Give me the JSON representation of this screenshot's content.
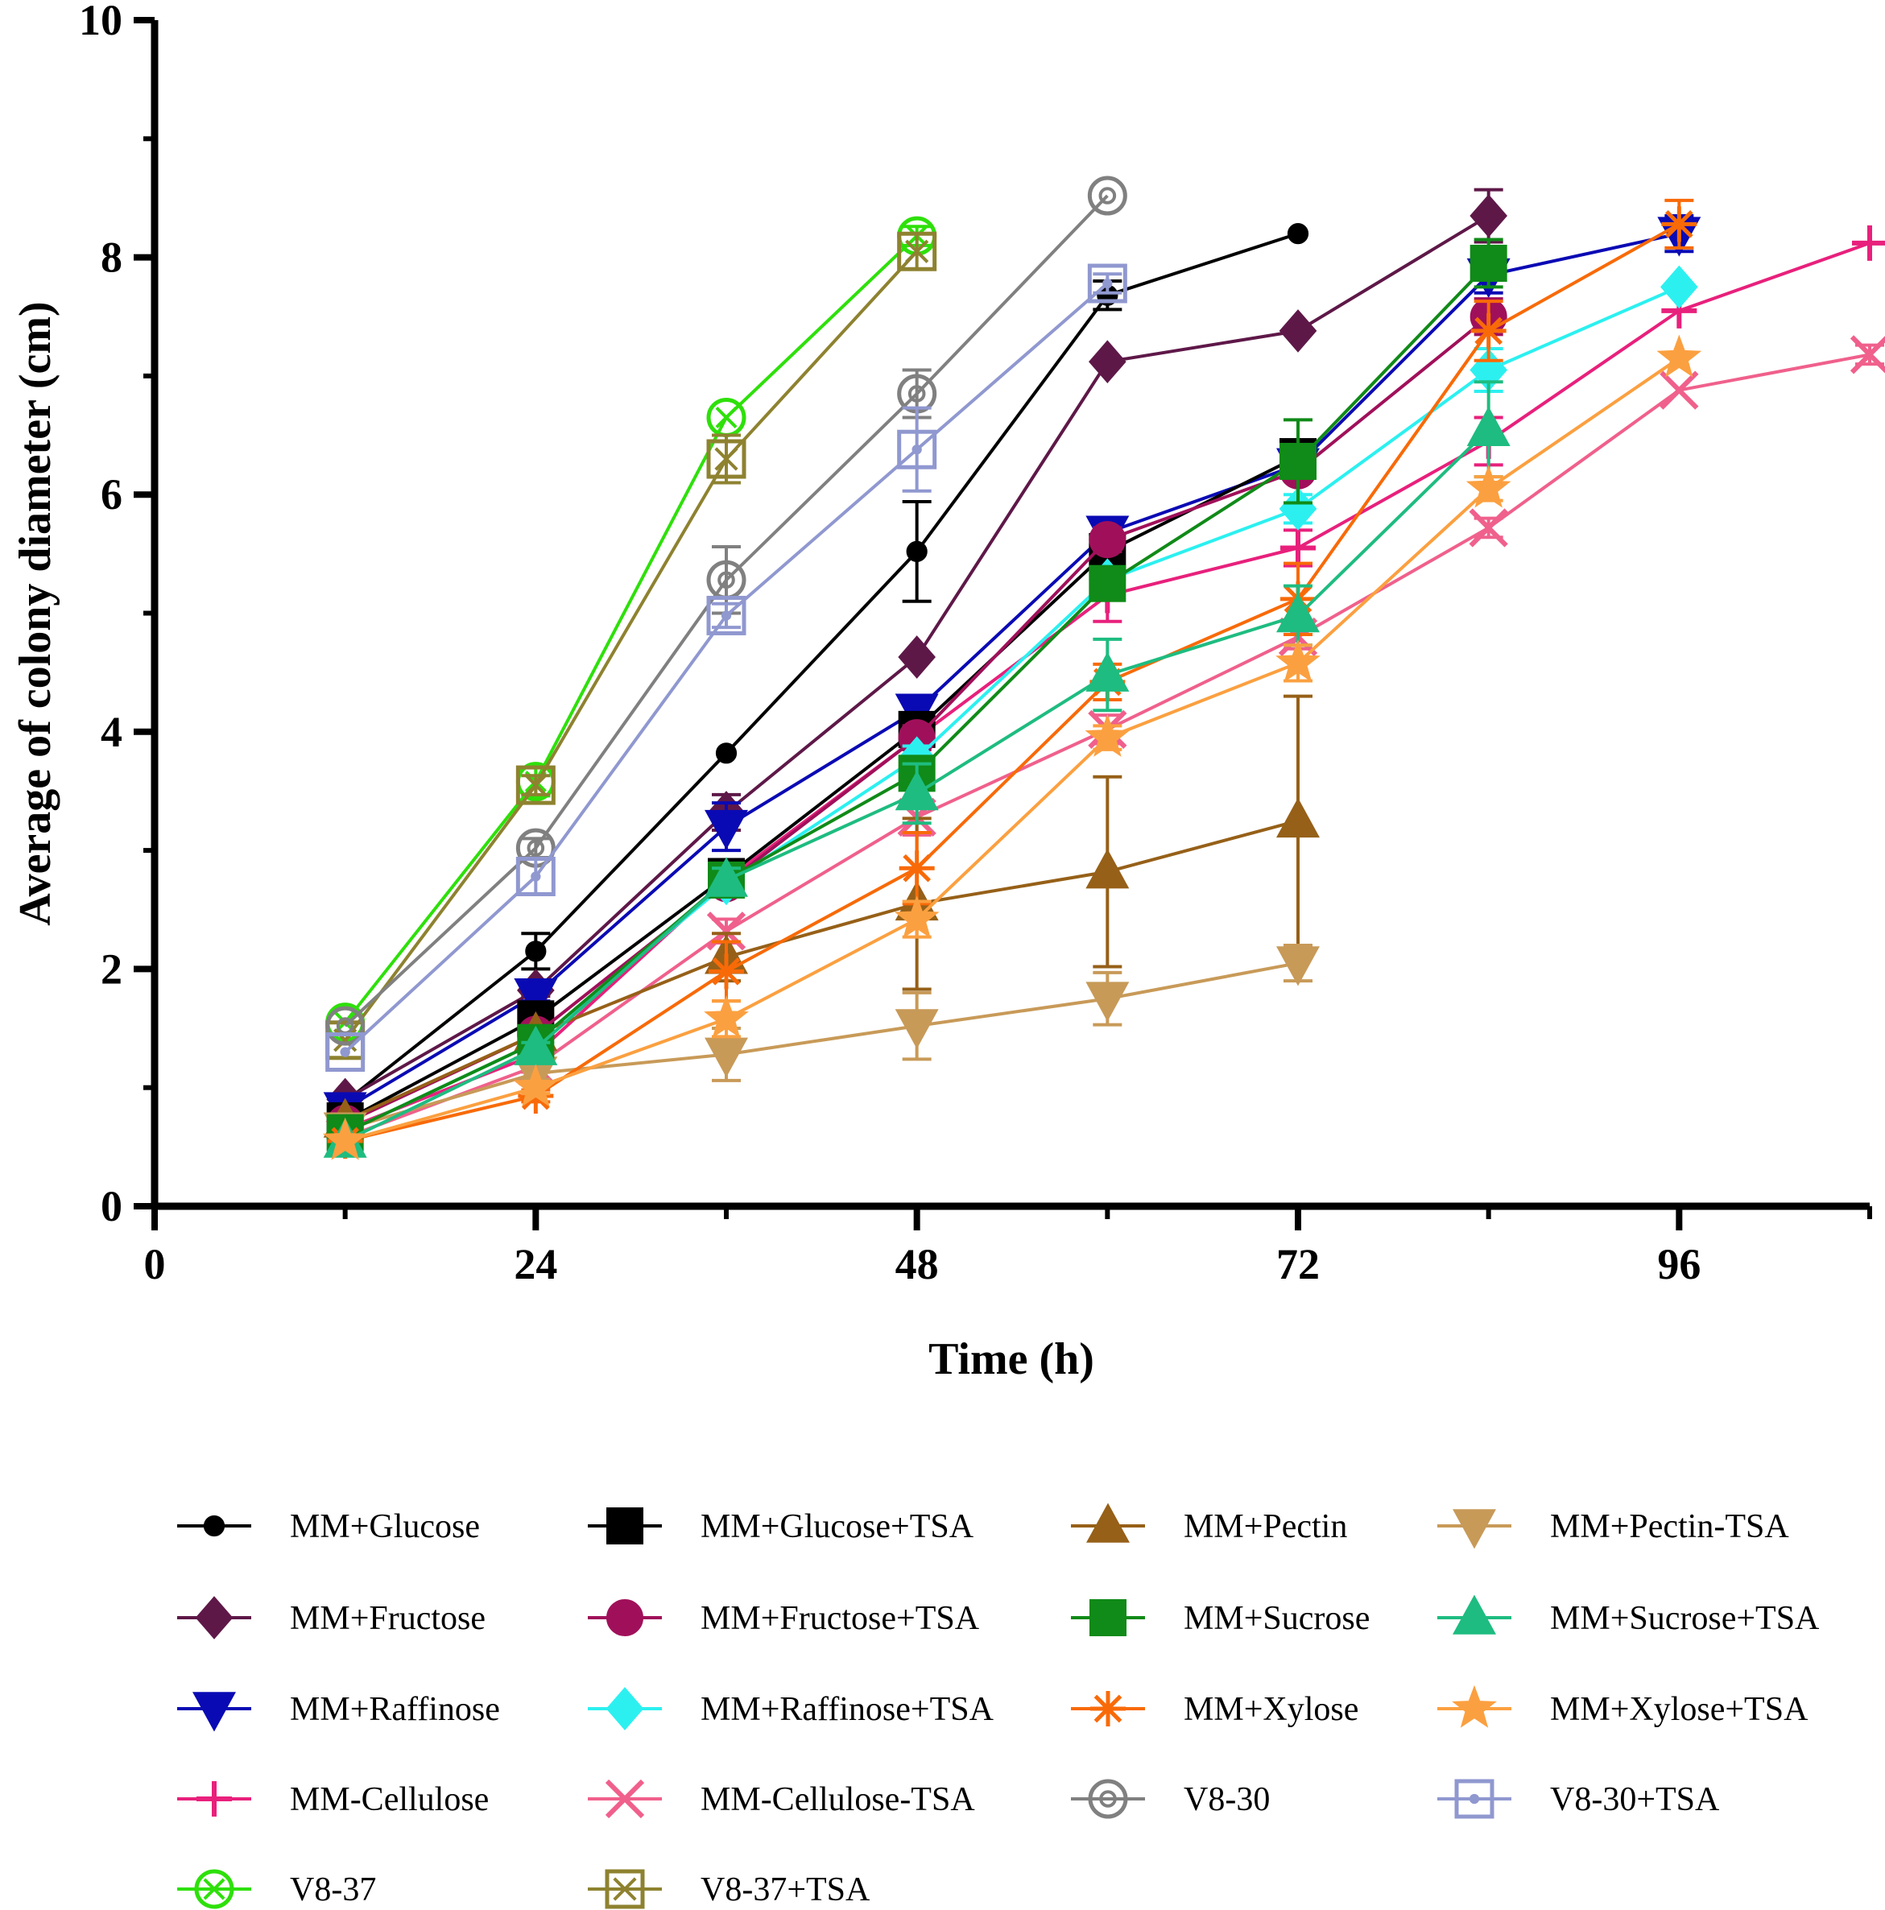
{
  "chart_data": {
    "type": "line",
    "title": "",
    "xlabel": "Time (h)",
    "ylabel": "Average of colony diameter (cm)",
    "xlim": [
      0,
      108
    ],
    "ylim": [
      0,
      10
    ],
    "x_ticks": [
      "0",
      "24",
      "48",
      "72",
      "96"
    ],
    "y_ticks": [
      "0",
      "2",
      "4",
      "6",
      "8",
      "10"
    ],
    "error_bars": "vertical (SD)",
    "legend_position": "bottom",
    "series": [
      {
        "name": "MM+Glucose",
        "color": "#000000",
        "marker": "circle-small",
        "points": [
          [
            12,
            0.88,
            0
          ],
          [
            24,
            2.15,
            0.15
          ],
          [
            36,
            3.82,
            0
          ],
          [
            48,
            5.52,
            0.42
          ],
          [
            60,
            7.68,
            0.12
          ],
          [
            72,
            8.2,
            0
          ]
        ]
      },
      {
        "name": "MM+Fructose",
        "color": "#5e1848",
        "marker": "diamond",
        "points": [
          [
            12,
            0.9,
            0
          ],
          [
            24,
            1.82,
            0.05
          ],
          [
            36,
            3.32,
            0.15
          ],
          [
            48,
            4.63,
            0
          ],
          [
            60,
            7.12,
            0
          ],
          [
            72,
            7.38,
            0
          ],
          [
            84,
            8.35,
            0.22
          ]
        ]
      },
      {
        "name": "MM+Raffinose",
        "color": "#0a0ab4",
        "marker": "triangle-down",
        "points": [
          [
            12,
            0.82,
            0
          ],
          [
            24,
            1.78,
            0.05
          ],
          [
            36,
            3.2,
            0.2
          ],
          [
            48,
            4.18,
            0.1
          ],
          [
            60,
            5.68,
            0.08
          ],
          [
            72,
            6.25,
            0.1
          ],
          [
            84,
            7.85,
            0.15
          ],
          [
            96,
            8.2,
            0.15
          ]
        ]
      },
      {
        "name": "MM-Cellulose",
        "color": "#e8207c",
        "marker": "plus",
        "points": [
          [
            12,
            0.65,
            0
          ],
          [
            24,
            1.28,
            0.05
          ],
          [
            36,
            2.75,
            0.1
          ],
          [
            48,
            3.95,
            0.1
          ],
          [
            60,
            5.15,
            0.22
          ],
          [
            72,
            5.55,
            0.15
          ],
          [
            84,
            6.45,
            0.2
          ],
          [
            96,
            7.55,
            0
          ],
          [
            108,
            8.12,
            0
          ]
        ]
      },
      {
        "name": "V8-37",
        "color": "#2ee00a",
        "marker": "circle-x",
        "points": [
          [
            12,
            1.55,
            0
          ],
          [
            24,
            3.58,
            0.12
          ],
          [
            36,
            6.65,
            0
          ],
          [
            48,
            8.18,
            0.08
          ]
        ]
      },
      {
        "name": "MM+Glucose+TSA",
        "color": "#000000",
        "marker": "square",
        "points": [
          [
            12,
            0.72,
            0
          ],
          [
            24,
            1.58,
            0.12
          ],
          [
            36,
            2.78,
            0.12
          ],
          [
            48,
            4.02,
            0.12
          ],
          [
            60,
            5.52,
            0.1
          ],
          [
            72,
            6.32,
            0.08
          ]
        ]
      },
      {
        "name": "MM+Fructose+TSA",
        "color": "#a0105a",
        "marker": "circle",
        "points": [
          [
            12,
            0.7,
            0
          ],
          [
            24,
            1.45,
            0.05
          ],
          [
            36,
            2.72,
            0.1
          ],
          [
            48,
            3.95,
            0.1
          ],
          [
            60,
            5.62,
            0.1
          ],
          [
            72,
            6.2,
            0.05
          ],
          [
            84,
            7.5,
            0.15
          ]
        ]
      },
      {
        "name": "MM+Raffinose+TSA",
        "color": "#2cf0f0",
        "marker": "diamond",
        "points": [
          [
            12,
            0.62,
            0
          ],
          [
            24,
            1.38,
            0.05
          ],
          [
            36,
            2.72,
            0.1
          ],
          [
            48,
            3.78,
            0.1
          ],
          [
            60,
            5.28,
            0.08
          ],
          [
            72,
            5.88,
            0.12
          ],
          [
            84,
            7.05,
            0.18
          ],
          [
            96,
            7.75,
            0
          ]
        ]
      },
      {
        "name": "MM-Cellulose-TSA",
        "color": "#f0608c",
        "marker": "x",
        "points": [
          [
            12,
            0.58,
            0
          ],
          [
            24,
            1.18,
            0.05
          ],
          [
            36,
            2.32,
            0.1
          ],
          [
            48,
            3.28,
            0.15
          ],
          [
            60,
            4.02,
            0.12
          ],
          [
            72,
            4.8,
            0.1
          ],
          [
            84,
            5.72,
            0.08
          ],
          [
            96,
            6.88,
            0
          ],
          [
            108,
            7.18,
            0.08
          ]
        ]
      },
      {
        "name": "V8-37+TSA",
        "color": "#8e8230",
        "marker": "square-x",
        "points": [
          [
            12,
            1.4,
            0
          ],
          [
            24,
            3.55,
            0.08
          ],
          [
            36,
            6.3,
            0.2
          ],
          [
            48,
            8.05,
            0.15
          ]
        ]
      },
      {
        "name": "MM+Pectin",
        "color": "#966018",
        "marker": "triangle-up",
        "points": [
          [
            12,
            0.72,
            0
          ],
          [
            24,
            1.45,
            0.05
          ],
          [
            36,
            2.1,
            0.2
          ],
          [
            48,
            2.55,
            0.72
          ],
          [
            60,
            2.82,
            0.8
          ],
          [
            72,
            3.25,
            1.05
          ]
        ]
      },
      {
        "name": "MM+Pectin-TSA",
        "color": "#c89a58",
        "marker": "triangle-down",
        "points": [
          [
            12,
            0.65,
            0
          ],
          [
            24,
            1.12,
            0.05
          ],
          [
            36,
            1.28,
            0.22
          ],
          [
            48,
            1.52,
            0.28
          ],
          [
            60,
            1.75,
            0.22
          ],
          [
            72,
            2.05,
            0.15
          ]
        ]
      },
      {
        "name": "MM+Sucrose",
        "color": "#108a18",
        "marker": "square",
        "points": [
          [
            12,
            0.62,
            0
          ],
          [
            24,
            1.38,
            0.05
          ],
          [
            36,
            2.75,
            0.1
          ],
          [
            48,
            3.65,
            0.12
          ],
          [
            60,
            5.25,
            0.1
          ],
          [
            72,
            6.28,
            0.35
          ],
          [
            84,
            7.95,
            0.2
          ]
        ]
      },
      {
        "name": "MM+Xylose",
        "color": "#f86a08",
        "marker": "asterisk",
        "points": [
          [
            12,
            0.55,
            0
          ],
          [
            24,
            0.93,
            0.05
          ],
          [
            36,
            1.98,
            0.25
          ],
          [
            48,
            2.85,
            0.3
          ],
          [
            60,
            4.42,
            0.15
          ],
          [
            72,
            5.12,
            0.3
          ],
          [
            84,
            7.38,
            0.25
          ],
          [
            96,
            8.28,
            0.2
          ]
        ]
      },
      {
        "name": "V8-30",
        "color": "#808080",
        "marker": "circle-dot",
        "points": [
          [
            12,
            1.52,
            0
          ],
          [
            24,
            3.02,
            0.08
          ],
          [
            36,
            5.28,
            0.28
          ],
          [
            48,
            6.85,
            0.2
          ],
          [
            60,
            8.52,
            0
          ]
        ]
      },
      {
        "name": "MM+Sucrose+TSA",
        "color": "#1ebc80",
        "marker": "triangle-up",
        "points": [
          [
            12,
            0.55,
            0
          ],
          [
            24,
            1.33,
            0.05
          ],
          [
            36,
            2.75,
            0.1
          ],
          [
            48,
            3.48,
            0.25
          ],
          [
            60,
            4.48,
            0.3
          ],
          [
            72,
            4.98,
            0.25
          ],
          [
            84,
            6.55,
            0.4
          ]
        ]
      },
      {
        "name": "MM+Xylose+TSA",
        "color": "#fba040",
        "marker": "star",
        "points": [
          [
            12,
            0.55,
            0
          ],
          [
            24,
            1.0,
            0.05
          ],
          [
            36,
            1.58,
            0.15
          ],
          [
            48,
            2.42,
            0.15
          ],
          [
            60,
            3.95,
            0.1
          ],
          [
            72,
            4.58,
            0.15
          ],
          [
            84,
            6.05,
            0.1
          ],
          [
            96,
            7.15,
            0
          ]
        ]
      },
      {
        "name": "V8-30+TSA",
        "color": "#9098d0",
        "marker": "square-dot",
        "points": [
          [
            12,
            1.3,
            0
          ],
          [
            24,
            2.78,
            0.15
          ],
          [
            36,
            4.98,
            0.1
          ],
          [
            48,
            6.38,
            0.35
          ],
          [
            60,
            7.78,
            0.08
          ]
        ]
      }
    ],
    "legend_rows": [
      [
        "MM+Glucose",
        "MM+Glucose+TSA",
        "MM+Pectin",
        "MM+Pectin-TSA"
      ],
      [
        "MM+Fructose",
        "MM+Fructose+TSA",
        "MM+Sucrose",
        "MM+Sucrose+TSA"
      ],
      [
        "MM+Raffinose",
        "MM+Raffinose+TSA",
        "MM+Xylose",
        "MM+Xylose+TSA"
      ],
      [
        "MM-Cellulose",
        "MM-Cellulose-TSA",
        "V8-30",
        "V8-30+TSA"
      ],
      [
        "V8-37",
        "V8-37+TSA"
      ]
    ]
  }
}
